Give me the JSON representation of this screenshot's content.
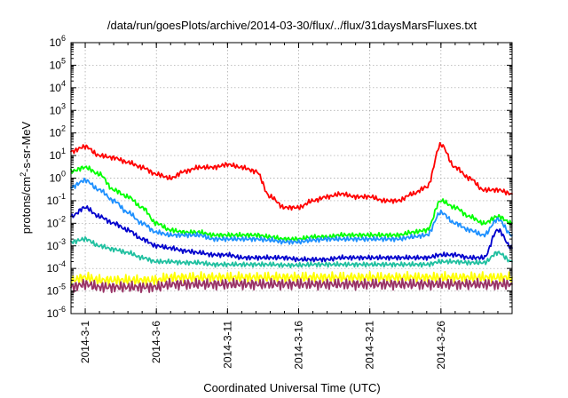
{
  "chart_data": {
    "type": "line",
    "title": "/data/run/goesPlots/archive/2014-03-30/flux/../flux/31daysMarsFluxes.txt",
    "xlabel": "Coordinated Universal Time (UTC)",
    "ylabel_parts": {
      "base": "protons/cm",
      "sup": "2",
      "rest": "-s-sr-MeV"
    },
    "yscale": "log",
    "ylim": [
      1e-06,
      1000000.0
    ],
    "xlim": [
      "2014-02-28",
      "2014-03-31"
    ],
    "grid": true,
    "x_ticks": [
      "2014-3-1",
      "2014-3-6",
      "2014-3-11",
      "2014-3-16",
      "2014-3-21",
      "2014-3-26"
    ],
    "y_ticks": [
      {
        "base": "10",
        "exp": "-6"
      },
      {
        "base": "10",
        "exp": "-5"
      },
      {
        "base": "10",
        "exp": "-4"
      },
      {
        "base": "10",
        "exp": "-3"
      },
      {
        "base": "10",
        "exp": "-2"
      },
      {
        "base": "10",
        "exp": "-1"
      },
      {
        "base": "10",
        "exp": "0"
      },
      {
        "base": "10",
        "exp": "1"
      },
      {
        "base": "10",
        "exp": "2"
      },
      {
        "base": "10",
        "exp": "3"
      },
      {
        "base": "10",
        "exp": "4"
      },
      {
        "base": "10",
        "exp": "5"
      },
      {
        "base": "10",
        "exp": "6"
      }
    ],
    "series": [
      {
        "color": "#ff0000",
        "x": [
          "2014-02-28",
          "2014-03-01",
          "2014-03-02",
          "2014-03-03",
          "2014-03-04",
          "2014-03-05",
          "2014-03-06",
          "2014-03-07",
          "2014-03-08",
          "2014-03-09",
          "2014-03-10",
          "2014-03-11",
          "2014-03-12",
          "2014-03-13",
          "2014-03-14",
          "2014-03-15",
          "2014-03-16",
          "2014-03-17",
          "2014-03-18",
          "2014-03-19",
          "2014-03-20",
          "2014-03-21",
          "2014-03-22",
          "2014-03-23",
          "2014-03-24",
          "2014-03-25",
          "2014-03-26",
          "2014-03-27",
          "2014-03-28",
          "2014-03-29",
          "2014-03-30",
          "2014-03-31"
        ],
        "y": [
          15,
          25,
          10,
          8,
          5,
          3,
          1.5,
          1,
          2,
          3,
          3,
          4,
          3,
          2,
          0.15,
          0.05,
          0.05,
          0.1,
          0.15,
          0.2,
          0.15,
          0.15,
          0.1,
          0.1,
          0.2,
          0.4,
          30,
          3,
          1,
          0.3,
          0.3,
          0.2
        ]
      },
      {
        "color": "#00ff00",
        "x": [
          "2014-02-28",
          "2014-03-01",
          "2014-03-02",
          "2014-03-03",
          "2014-03-04",
          "2014-03-05",
          "2014-03-06",
          "2014-03-07",
          "2014-03-08",
          "2014-03-09",
          "2014-03-10",
          "2014-03-11",
          "2014-03-12",
          "2014-03-13",
          "2014-03-14",
          "2014-03-15",
          "2014-03-16",
          "2014-03-17",
          "2014-03-18",
          "2014-03-19",
          "2014-03-20",
          "2014-03-21",
          "2014-03-22",
          "2014-03-23",
          "2014-03-24",
          "2014-03-25",
          "2014-03-26",
          "2014-03-27",
          "2014-03-28",
          "2014-03-29",
          "2014-03-30",
          "2014-03-31"
        ],
        "y": [
          2,
          3,
          1.5,
          0.3,
          0.15,
          0.05,
          0.01,
          0.005,
          0.004,
          0.004,
          0.003,
          0.003,
          0.003,
          0.003,
          0.0025,
          0.002,
          0.002,
          0.0025,
          0.0025,
          0.003,
          0.003,
          0.003,
          0.003,
          0.003,
          0.004,
          0.005,
          0.1,
          0.05,
          0.02,
          0.01,
          0.02,
          0.01
        ]
      },
      {
        "color": "#1e90ff",
        "x": [
          "2014-02-28",
          "2014-03-01",
          "2014-03-02",
          "2014-03-03",
          "2014-03-04",
          "2014-03-05",
          "2014-03-06",
          "2014-03-07",
          "2014-03-08",
          "2014-03-09",
          "2014-03-10",
          "2014-03-11",
          "2014-03-12",
          "2014-03-13",
          "2014-03-14",
          "2014-03-15",
          "2014-03-16",
          "2014-03-17",
          "2014-03-18",
          "2014-03-19",
          "2014-03-20",
          "2014-03-21",
          "2014-03-22",
          "2014-03-23",
          "2014-03-24",
          "2014-03-25",
          "2014-03-26",
          "2014-03-27",
          "2014-03-28",
          "2014-03-29",
          "2014-03-30",
          "2014-03-31"
        ],
        "y": [
          0.4,
          0.8,
          0.3,
          0.1,
          0.03,
          0.01,
          0.004,
          0.003,
          0.003,
          0.003,
          0.002,
          0.002,
          0.002,
          0.002,
          0.0018,
          0.0015,
          0.0015,
          0.0018,
          0.002,
          0.002,
          0.002,
          0.002,
          0.002,
          0.002,
          0.0025,
          0.003,
          0.03,
          0.01,
          0.005,
          0.003,
          0.015,
          0.003
        ]
      },
      {
        "color": "#0000cd",
        "x": [
          "2014-02-28",
          "2014-03-01",
          "2014-03-02",
          "2014-03-03",
          "2014-03-04",
          "2014-03-05",
          "2014-03-06",
          "2014-03-07",
          "2014-03-08",
          "2014-03-09",
          "2014-03-10",
          "2014-03-11",
          "2014-03-12",
          "2014-03-13",
          "2014-03-14",
          "2014-03-15",
          "2014-03-16",
          "2014-03-17",
          "2014-03-18",
          "2014-03-19",
          "2014-03-20",
          "2014-03-21",
          "2014-03-22",
          "2014-03-23",
          "2014-03-24",
          "2014-03-25",
          "2014-03-26",
          "2014-03-27",
          "2014-03-28",
          "2014-03-29",
          "2014-03-30",
          "2014-03-31"
        ],
        "y": [
          0.02,
          0.05,
          0.02,
          0.01,
          0.005,
          0.002,
          0.001,
          0.0008,
          0.0006,
          0.0005,
          0.0004,
          0.0004,
          0.0003,
          0.0003,
          0.0003,
          0.0003,
          0.00025,
          0.00025,
          0.00025,
          0.0003,
          0.0003,
          0.0003,
          0.0003,
          0.0003,
          0.0003,
          0.0003,
          0.0004,
          0.0004,
          0.0003,
          0.0003,
          0.005,
          0.0008
        ]
      },
      {
        "color": "#20c0a0",
        "x": [
          "2014-02-28",
          "2014-03-01",
          "2014-03-02",
          "2014-03-03",
          "2014-03-04",
          "2014-03-05",
          "2014-03-06",
          "2014-03-07",
          "2014-03-08",
          "2014-03-09",
          "2014-03-10",
          "2014-03-11",
          "2014-03-12",
          "2014-03-13",
          "2014-03-14",
          "2014-03-15",
          "2014-03-16",
          "2014-03-17",
          "2014-03-18",
          "2014-03-19",
          "2014-03-20",
          "2014-03-21",
          "2014-03-22",
          "2014-03-23",
          "2014-03-24",
          "2014-03-25",
          "2014-03-26",
          "2014-03-27",
          "2014-03-28",
          "2014-03-29",
          "2014-03-30",
          "2014-03-31"
        ],
        "y": [
          0.0015,
          0.002,
          0.001,
          0.0007,
          0.0005,
          0.0003,
          0.0002,
          0.0002,
          0.00018,
          0.00018,
          0.00015,
          0.00015,
          0.00015,
          0.00015,
          0.00015,
          0.00014,
          0.00014,
          0.00015,
          0.00015,
          0.00015,
          0.00015,
          0.00015,
          0.00015,
          0.00015,
          0.00015,
          0.00015,
          0.0002,
          0.0002,
          0.00018,
          0.00018,
          0.0005,
          0.0002
        ]
      },
      {
        "color": "#ffff00",
        "x": [
          "2014-02-28",
          "2014-03-01",
          "2014-03-02",
          "2014-03-03",
          "2014-03-04",
          "2014-03-05",
          "2014-03-06",
          "2014-03-07",
          "2014-03-08",
          "2014-03-09",
          "2014-03-10",
          "2014-03-11",
          "2014-03-12",
          "2014-03-13",
          "2014-03-14",
          "2014-03-15",
          "2014-03-16",
          "2014-03-17",
          "2014-03-18",
          "2014-03-19",
          "2014-03-20",
          "2014-03-21",
          "2014-03-22",
          "2014-03-23",
          "2014-03-24",
          "2014-03-25",
          "2014-03-26",
          "2014-03-27",
          "2014-03-28",
          "2014-03-29",
          "2014-03-30",
          "2014-03-31"
        ],
        "y": [
          3e-05,
          4e-05,
          3e-05,
          3e-05,
          3e-05,
          3e-05,
          3e-05,
          4e-05,
          4e-05,
          4e-05,
          4e-05,
          4e-05,
          4e-05,
          4e-05,
          4e-05,
          4e-05,
          4e-05,
          4e-05,
          4e-05,
          4e-05,
          4e-05,
          4e-05,
          4e-05,
          4e-05,
          4e-05,
          4e-05,
          4e-05,
          4e-05,
          4e-05,
          4e-05,
          4e-05,
          4e-05
        ]
      },
      {
        "color": "#993366",
        "x": [
          "2014-02-28",
          "2014-03-01",
          "2014-03-02",
          "2014-03-03",
          "2014-03-04",
          "2014-03-05",
          "2014-03-06",
          "2014-03-07",
          "2014-03-08",
          "2014-03-09",
          "2014-03-10",
          "2014-03-11",
          "2014-03-12",
          "2014-03-13",
          "2014-03-14",
          "2014-03-15",
          "2014-03-16",
          "2014-03-17",
          "2014-03-18",
          "2014-03-19",
          "2014-03-20",
          "2014-03-21",
          "2014-03-22",
          "2014-03-23",
          "2014-03-24",
          "2014-03-25",
          "2014-03-26",
          "2014-03-27",
          "2014-03-28",
          "2014-03-29",
          "2014-03-30",
          "2014-03-31"
        ],
        "y": [
          1.5e-05,
          2e-05,
          1.5e-05,
          1.5e-05,
          1.5e-05,
          1.5e-05,
          1.5e-05,
          2e-05,
          2e-05,
          2e-05,
          2e-05,
          2e-05,
          2e-05,
          2e-05,
          2e-05,
          2e-05,
          2e-05,
          2e-05,
          2e-05,
          2e-05,
          2e-05,
          2e-05,
          2e-05,
          2e-05,
          2e-05,
          2e-05,
          2e-05,
          2e-05,
          2e-05,
          2e-05,
          2e-05,
          2e-05
        ]
      }
    ]
  }
}
